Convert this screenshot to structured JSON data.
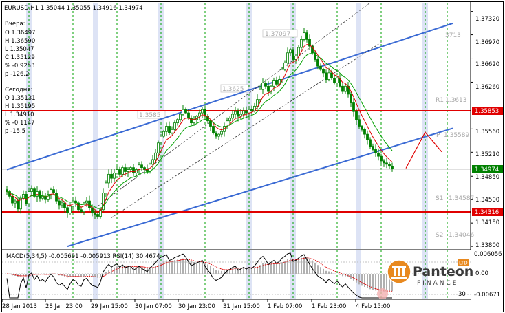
{
  "header": {
    "symbol_line": "EURUSD,H1  1.35044 1.35055 1.34916 1.34974"
  },
  "info_panel": {
    "yesterday": {
      "title": "Вчера:",
      "lines": [
        "O 1.36497",
        "H 1.36590",
        "L 1.35047",
        "C 1.35129",
        "% -0.9253",
        "p -126.2"
      ]
    },
    "today": {
      "title": "Сегодня:",
      "lines": [
        "O 1.35131",
        "H 1.35195",
        "L 1.34910",
        "% -0.1147",
        "p -15.5"
      ]
    }
  },
  "indicator_label": "MACD(5,34,5) -0.005691 -0.005913  RSI(14) 30.4674",
  "logo": {
    "name": "Panteon",
    "sub": "FINANCE",
    "badge": "LTD"
  },
  "colors": {
    "candle": "#008000",
    "channel": "#3a6ad4",
    "resistance": "#e00000",
    "ma_fast": "#e00000",
    "ma_slow": "#00a000",
    "grid": "#00a000",
    "session": "#dde3f5",
    "price_tag": "#008000",
    "level_tag": "#e00000"
  },
  "chart_data": {
    "type": "candlestick",
    "symbol": "EURUSD",
    "timeframe": "H1",
    "x_tick_labels": [
      "28 Jan 2013",
      "28 Jan 23:00",
      "29 Jan 15:00",
      "30 Jan 07:00",
      "30 Jan 23:00",
      "31 Jan 15:00",
      "1 Feb 07:00",
      "1 Feb 23:00",
      "4 Feb 15:00"
    ],
    "y_tick_labels": [
      "1.37320",
      "1.36970",
      "1.36620",
      "1.36260",
      "1.35560",
      "1.35210",
      "1.34850",
      "1.34500",
      "1.34150",
      "1.33800"
    ],
    "ylim": [
      1.3376,
      1.3745
    ],
    "current_price": 1.34974,
    "horizontal_levels": [
      1.35853,
      1.34316
    ],
    "pivot_levels": [
      {
        "label": "R1",
        "value": 1.3613
      },
      {
        "label": "P",
        "value": 1.35589
      },
      {
        "label": "S1",
        "value": 1.34587
      },
      {
        "label": "S2",
        "value": 1.34046
      }
    ],
    "marked_extremes": [
      "1.37097",
      "1.3625",
      "1.3585"
    ],
    "pivot_partial_labels": [
      "3713"
    ],
    "price_tags": [
      "1.35853",
      "1.34974",
      "1.34316"
    ],
    "channel_lines": [
      {
        "style": "solid",
        "from": [
          0,
          1.3495
        ],
        "to": [
          162,
          1.37142
        ]
      },
      {
        "style": "solid",
        "from": [
          22,
          1.338
        ],
        "to": [
          162,
          1.3557
        ]
      },
      {
        "style": "dashed",
        "from": [
          32,
          1.3437
        ],
        "to": [
          132,
          1.3745
        ]
      },
      {
        "style": "dashed",
        "from": [
          38,
          1.3423
        ],
        "to": [
          137,
          1.36882
        ]
      }
    ],
    "projection": [
      [
        145,
        1.3497
      ],
      [
        152,
        1.3551
      ],
      [
        158,
        1.35215
      ]
    ],
    "closes": [
      1.3462,
      1.3455,
      1.3445,
      1.3448,
      1.3436,
      1.3452,
      1.3458,
      1.3444,
      1.3462,
      1.3466,
      1.3455,
      1.3462,
      1.3452,
      1.3455,
      1.345,
      1.3458,
      1.3465,
      1.346,
      1.3448,
      1.3442,
      1.3445,
      1.3438,
      1.343,
      1.344,
      1.3448,
      1.3445,
      1.3435,
      1.3432,
      1.3445,
      1.3448,
      1.3438,
      1.343,
      1.3428,
      1.3425,
      1.3435,
      1.346,
      1.3475,
      1.3488,
      1.3482,
      1.349,
      1.3495,
      1.3488,
      1.3498,
      1.3492,
      1.3495,
      1.3498,
      1.349,
      1.3495,
      1.3502,
      1.3498,
      1.3495,
      1.3492,
      1.3503,
      1.351,
      1.352,
      1.3535,
      1.3545,
      1.3552,
      1.356,
      1.355,
      1.3555,
      1.3565,
      1.357,
      1.3578,
      1.3585,
      1.358,
      1.3572,
      1.3565,
      1.357,
      1.3575,
      1.358,
      1.3585,
      1.3575,
      1.3568,
      1.356,
      1.355,
      1.3545,
      1.3548,
      1.3552,
      1.356,
      1.3568,
      1.3572,
      1.3578,
      1.3582,
      1.3575,
      1.3578,
      1.3583,
      1.358,
      1.3585,
      1.3583,
      1.359,
      1.36,
      1.3615,
      1.3625,
      1.362,
      1.3612,
      1.362,
      1.3628,
      1.3623,
      1.363,
      1.3645,
      1.3655,
      1.367,
      1.3675,
      1.366,
      1.3665,
      1.3678,
      1.369,
      1.37,
      1.369,
      1.368,
      1.367,
      1.366,
      1.365,
      1.3645,
      1.364,
      1.363,
      1.364,
      1.3632,
      1.3625,
      1.3632,
      1.362,
      1.3612,
      1.362,
      1.3608,
      1.3595,
      1.3582,
      1.357,
      1.356,
      1.3555,
      1.3548,
      1.354,
      1.353,
      1.3525,
      1.352,
      1.3515,
      1.3508,
      1.3505,
      1.3503,
      1.35,
      1.3497
    ],
    "macd_levels": [
      "0.006056",
      "0.00",
      "-0.00671"
    ],
    "rsi_levels": [
      "70",
      "30"
    ]
  }
}
